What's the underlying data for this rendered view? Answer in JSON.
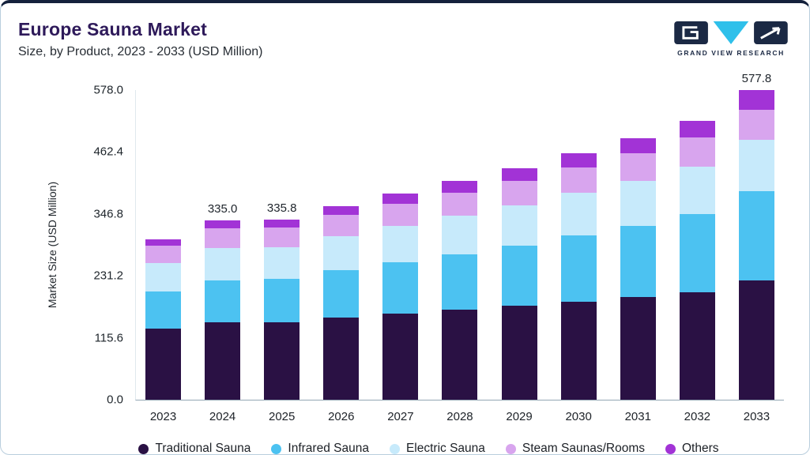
{
  "header": {
    "title": "Europe Sauna Market",
    "subtitle": "Size, by Product, 2023 - 2033 (USD Million)",
    "logo_text": "GRAND VIEW RESEARCH"
  },
  "brand_colors": {
    "navy": "#1b2944",
    "cyan": "#2fc0ea"
  },
  "chart_data": {
    "type": "bar",
    "stacked": true,
    "title": "Europe Sauna Market Size, by Product, 2023 - 2033 (USD Million)",
    "xlabel": "",
    "ylabel": "Market Size (USD Million)",
    "ylim": [
      0,
      578
    ],
    "yticks": [
      "0.0",
      "115.6",
      "231.2",
      "346.8",
      "462.4",
      "578.0"
    ],
    "grid": false,
    "legend_position": "bottom",
    "categories": [
      "2023",
      "2024",
      "2025",
      "2026",
      "2027",
      "2028",
      "2029",
      "2030",
      "2031",
      "2032",
      "2033"
    ],
    "series": [
      {
        "name": "Traditional Sauna",
        "color": "#2a1144",
        "values": [
          132,
          144,
          145,
          154,
          161,
          168,
          175,
          183,
          191,
          200,
          222
        ]
      },
      {
        "name": "Infrared Sauna",
        "color": "#4cc2f1",
        "values": [
          70,
          79,
          80,
          88,
          96,
          104,
          113,
          123,
          134,
          146,
          168
        ]
      },
      {
        "name": "Electric Sauna",
        "color": "#c7eafb",
        "values": [
          53,
          60,
          59,
          63,
          67,
          71,
          75,
          80,
          84,
          89,
          95
        ]
      },
      {
        "name": "Steam Saunas/Rooms",
        "color": "#d8a5ee",
        "values": [
          33,
          37,
          37,
          40,
          42,
          44,
          46,
          48,
          51,
          54,
          56
        ]
      },
      {
        "name": "Others",
        "color": "#a233d6",
        "values": [
          12,
          15,
          14.8,
          17,
          19,
          21,
          23,
          26,
          28,
          31,
          36.8
        ]
      }
    ],
    "total_labels": {
      "2024": "335.0",
      "2025": "335.8",
      "2033": "577.8"
    }
  }
}
